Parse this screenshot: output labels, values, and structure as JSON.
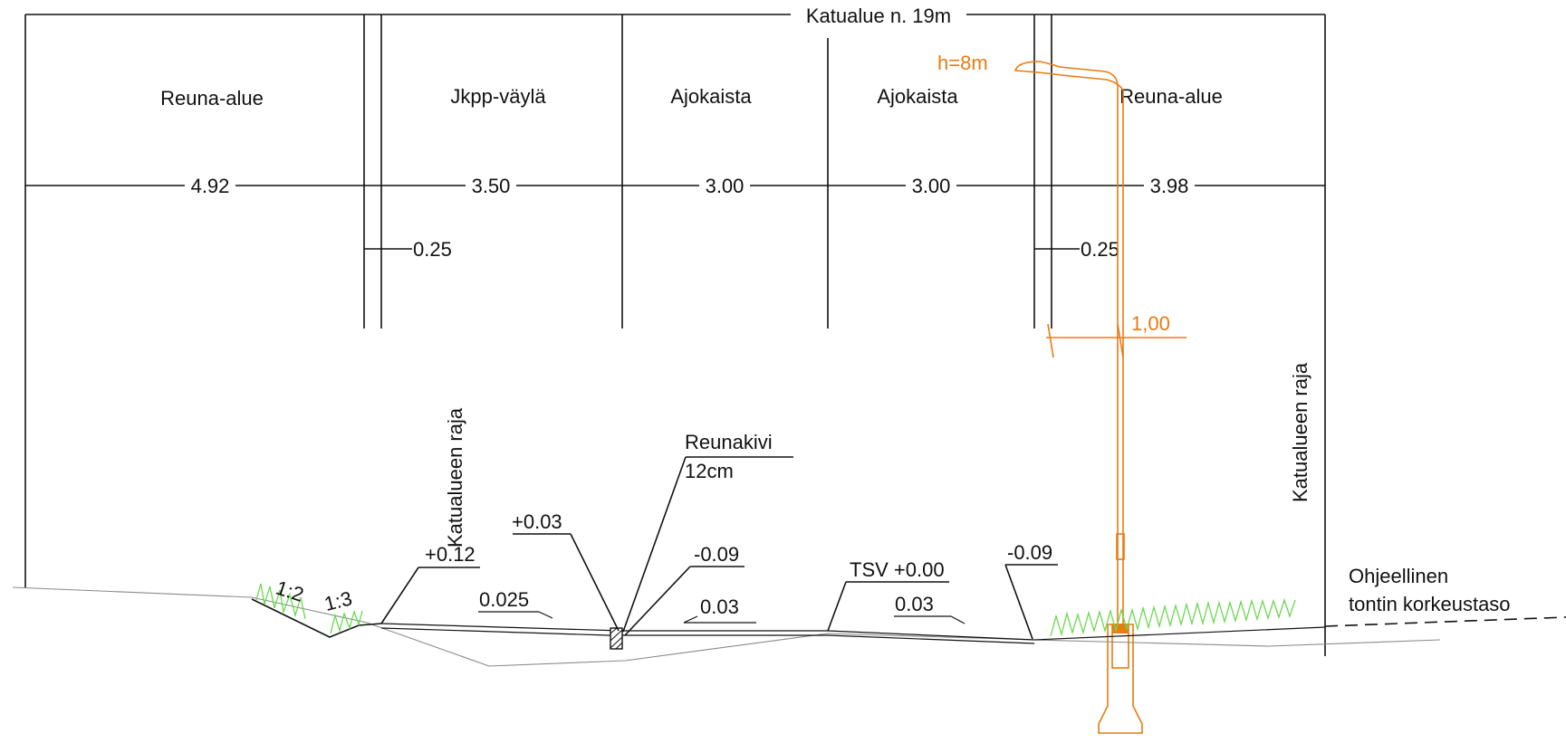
{
  "title": "Katualue n. 19m",
  "zones": [
    "Reuna-alue",
    "Jkpp-väylä",
    "Ajokaista",
    "Ajokaista",
    "Reuna-alue"
  ],
  "widths": [
    "4.92",
    "3.50",
    "3.00",
    "3.00",
    "3.98"
  ],
  "separator_widths": [
    "0.25",
    "0.25"
  ],
  "lamp": {
    "height_label": "h=8m",
    "offset_label": "1,00"
  },
  "boundary_labels": {
    "left": "Katualueen raja",
    "right": "Katualueen raja"
  },
  "curb": {
    "label": "Reunakivi",
    "size": "12cm"
  },
  "elevations": {
    "shoulder": "+0.12",
    "curb_top": "+0.03",
    "curb_bottom": "-0.09",
    "centerline": "TSV +0.00",
    "right_edge": "-0.09"
  },
  "slopes": {
    "ditch_left": "1:2",
    "ditch_right": "1:3",
    "path": "0.025",
    "lane_left": "0.03",
    "lane_right": "0.03"
  },
  "note": {
    "line1": "Ohjeellinen",
    "line2": "tontin korkeustaso"
  }
}
